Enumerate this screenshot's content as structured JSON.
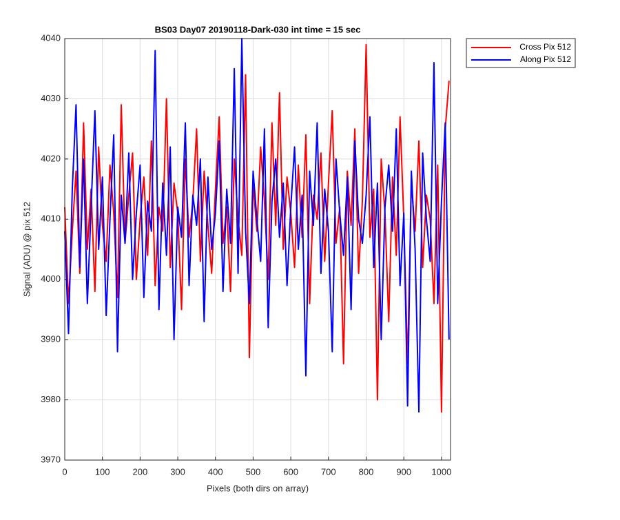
{
  "chart_data": {
    "type": "line",
    "title": "BS03 Day07 20190118-Dark-030 int time = 15 sec",
    "x_label": "Pixels (both dirs on array)",
    "y_label": "Signal (ADU) @ pix 512",
    "x": [
      0,
      10,
      20,
      30,
      40,
      50,
      60,
      70,
      80,
      90,
      100,
      110,
      120,
      130,
      140,
      150,
      160,
      170,
      180,
      190,
      200,
      210,
      220,
      230,
      240,
      250,
      260,
      270,
      280,
      290,
      300,
      310,
      320,
      330,
      340,
      350,
      360,
      370,
      380,
      390,
      400,
      410,
      420,
      430,
      440,
      450,
      460,
      470,
      480,
      490,
      500,
      510,
      520,
      530,
      540,
      550,
      560,
      570,
      580,
      590,
      600,
      610,
      620,
      630,
      640,
      650,
      660,
      670,
      680,
      690,
      700,
      710,
      720,
      730,
      740,
      750,
      760,
      770,
      780,
      790,
      800,
      810,
      820,
      830,
      840,
      850,
      860,
      870,
      880,
      890,
      900,
      910,
      920,
      930,
      940,
      950,
      960,
      970,
      980,
      990,
      1000,
      1010,
      1020
    ],
    "series": [
      {
        "name": "Cross Pix 512",
        "color": "#ff0000",
        "values": [
          4012,
          3996,
          4008,
          4018,
          4001,
          4026,
          4005,
          4015,
          3998,
          4022,
          4009,
          4003,
          4019,
          4011,
          3997,
          4029,
          4006,
          4014,
          4021,
          4000,
          4010,
          4017,
          4004,
          4023,
          3999,
          4012,
          4008,
          4030,
          4002,
          4016,
          4011,
          3995,
          4020,
          4007,
          4013,
          4025,
          4003,
          4018,
          4009,
          4001,
          4015,
          4027,
          4006,
          4012,
          3998,
          4020,
          4010,
          4004,
          4034,
          3987,
          4016,
          4008,
          4022,
          4013,
          4000,
          4026,
          4009,
          4031,
          4005,
          4017,
          4011,
          4002,
          4019,
          4007,
          4024,
          3996,
          4014,
          4010,
          4021,
          4003,
          4016,
          4028,
          4006,
          4012,
          3986,
          4018,
          4009,
          4025,
          4001,
          4013,
          4039,
          4007,
          4015,
          3980,
          4020,
          4011,
          3993,
          4017,
          4004,
          4027,
          4010,
          3986,
          4016,
          4008,
          4023,
          4002,
          4014,
          4010,
          3996,
          4019,
          3978,
          4025,
          4033
        ]
      },
      {
        "name": "Along Pix 512",
        "color": "#0000ff",
        "values": [
          4008,
          3991,
          4015,
          4029,
          4002,
          4020,
          3996,
          4012,
          4028,
          4005,
          4017,
          3994,
          4010,
          4024,
          3988,
          4014,
          4006,
          4021,
          4000,
          4011,
          4019,
          3997,
          4013,
          4008,
          4038,
          3995,
          4016,
          4004,
          4022,
          3990,
          4012,
          4007,
          4026,
          3999,
          4014,
          4009,
          4020,
          3993,
          4017,
          4005,
          4011,
          4023,
          3998,
          4015,
          4006,
          4035,
          4001,
          4040,
          4008,
          3996,
          4018,
          4010,
          4003,
          4025,
          3992,
          4013,
          4020,
          4007,
          4016,
          3999,
          4012,
          4022,
          4005,
          4014,
          3984,
          4018,
          4009,
          4026,
          4001,
          4015,
          4008,
          3988,
          4020,
          4011,
          4004,
          4017,
          3995,
          4023,
          4010,
          4006,
          4014,
          4027,
          4002,
          4016,
          3990,
          4012,
          4019,
          4008,
          4025,
          3999,
          4011,
          3979,
          4018,
          4005,
          3978,
          4021,
          4010,
          4003,
          4036,
          3996,
          4013,
          4026,
          3990
        ]
      }
    ],
    "xlim": [
      0,
      1024
    ],
    "xticks": [
      0,
      100,
      200,
      300,
      400,
      500,
      600,
      700,
      800,
      900,
      1000
    ],
    "ylim": [
      3970,
      4040
    ],
    "yticks": [
      3970,
      3980,
      3990,
      4000,
      4010,
      4020,
      4030,
      4040
    ],
    "grid": true,
    "legend": "outside-top-right"
  }
}
